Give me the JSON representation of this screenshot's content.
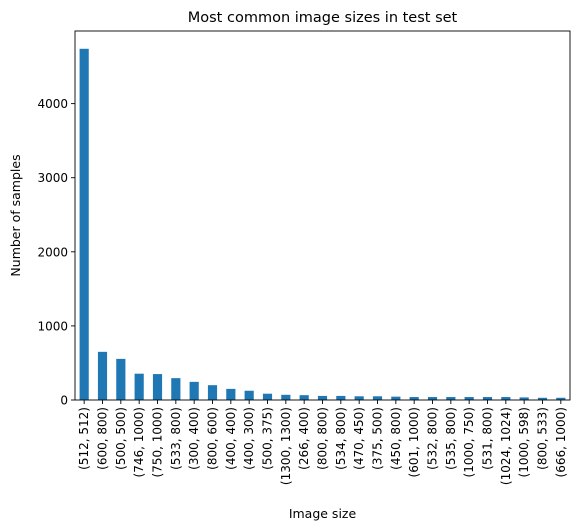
{
  "chart_data": {
    "type": "bar",
    "title": "Most common image sizes in test set",
    "xlabel": "Image size",
    "ylabel": "Number of samples",
    "ylim": [
      0,
      4980
    ],
    "yticks": [
      0,
      1000,
      2000,
      3000,
      4000
    ],
    "grid": false,
    "bar_color": "#1f77b4",
    "categories": [
      "(512, 512)",
      "(600, 800)",
      "(500, 500)",
      "(746, 1000)",
      "(750, 1000)",
      "(533, 800)",
      "(300, 400)",
      "(800, 600)",
      "(400, 400)",
      "(400, 300)",
      "(500, 375)",
      "(1300, 1300)",
      "(266, 400)",
      "(800, 800)",
      "(534, 800)",
      "(470, 450)",
      "(375, 500)",
      "(450, 800)",
      "(601, 1000)",
      "(532, 800)",
      "(535, 800)",
      "(1000, 750)",
      "(531, 800)",
      "(1024, 1024)",
      "(1000, 598)",
      "(800, 533)",
      "(666, 1000)"
    ],
    "values": [
      4740,
      650,
      555,
      355,
      350,
      295,
      245,
      200,
      150,
      125,
      85,
      70,
      65,
      55,
      55,
      50,
      50,
      45,
      40,
      40,
      40,
      40,
      40,
      40,
      35,
      30,
      30
    ]
  }
}
